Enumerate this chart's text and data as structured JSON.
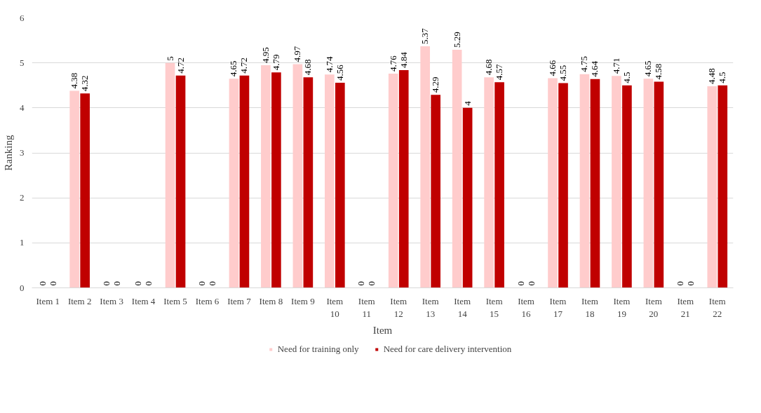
{
  "chart_data": {
    "type": "bar",
    "xlabel": "Item",
    "ylabel": "Ranking",
    "categories": [
      "Item 1",
      "Item 2",
      "Item 3",
      "Item 4",
      "Item 5",
      "Item 6",
      "Item 7",
      "Item 8",
      "Item 9",
      "Item 10",
      "Item 11",
      "Item 12",
      "Item 13",
      "Item 14",
      "Item 15",
      "Item 16",
      "Item 17",
      "Item 18",
      "Item 19",
      "Item 20",
      "Item 21",
      "Item 22"
    ],
    "series": [
      {
        "name": "Need for training only",
        "color": "#ffcccc",
        "values": [
          0,
          4.38,
          0,
          0,
          5,
          0,
          4.65,
          4.95,
          4.97,
          4.74,
          0,
          4.76,
          5.37,
          5.29,
          4.68,
          0,
          4.66,
          4.75,
          4.71,
          4.65,
          0,
          4.48
        ]
      },
      {
        "name": "Need for care delivery intervention",
        "color": "#c00000",
        "values": [
          0,
          4.32,
          0,
          0,
          4.72,
          0,
          4.72,
          4.79,
          4.68,
          4.56,
          0,
          4.84,
          4.29,
          4,
          4.57,
          0,
          4.55,
          4.64,
          4.5,
          4.58,
          0,
          4.5
        ]
      }
    ],
    "ylim": [
      0,
      6
    ],
    "yticks": [
      0,
      1,
      2,
      3,
      4,
      5,
      6
    ],
    "grid": "y",
    "legend": "bottom",
    "data_labels": true
  }
}
